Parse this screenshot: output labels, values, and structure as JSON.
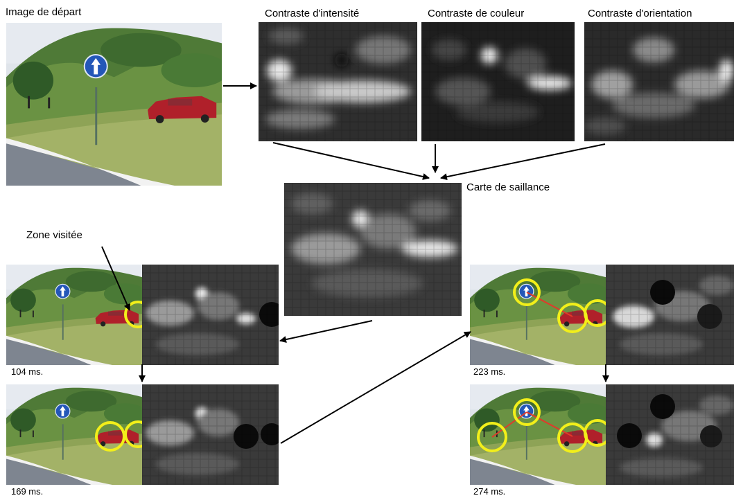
{
  "labels": {
    "image_depart": "Image de départ",
    "contraste_intensite": "Contraste d'intensité",
    "contraste_couleur": "Contraste de couleur",
    "contraste_orientation": "Contraste d'orientation",
    "carte_saillance": "Carte de saillance",
    "zone_visitee": "Zone visitée"
  },
  "times": {
    "t1": "104 ms.",
    "t2": "169 ms.",
    "t3": "223 ms.",
    "t4": "274 ms."
  },
  "colors": {
    "highlight_circle": "#f2ef1a",
    "scan_path": "#e03a2a",
    "sign": "#2457b8",
    "car": "#b0202a"
  }
}
